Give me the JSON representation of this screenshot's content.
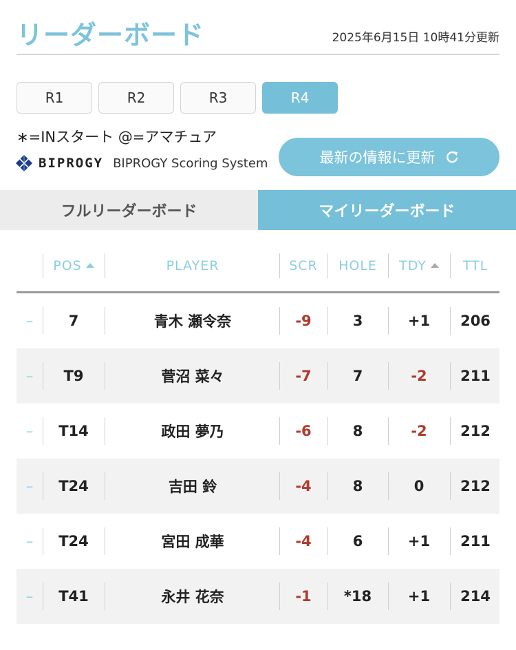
{
  "header": {
    "title": "リーダーボード",
    "updated": "2025年6月15日 10時41分更新"
  },
  "rounds": [
    "R1",
    "R2",
    "R3",
    "R4"
  ],
  "active_round": "R4",
  "legend": "∗=INスタート @=アマチュア",
  "sponsor": {
    "brand": "BIPROGY",
    "system": "BIPROGY Scoring System"
  },
  "refresh_label": "最新の情報に更新",
  "board_tabs": {
    "full": "フルリーダーボード",
    "my": "マイリーダーボード"
  },
  "columns": {
    "pos": "POS",
    "player": "PLAYER",
    "scr": "SCR",
    "hole": "HOLE",
    "tdy": "TDY",
    "ttl": "TTL"
  },
  "rows": [
    {
      "change": "–",
      "pos": "7",
      "player": "青木 瀬令奈",
      "scr": "-9",
      "hole": "3",
      "tdy": "+1",
      "ttl": "206"
    },
    {
      "change": "–",
      "pos": "T9",
      "player": "菅沼 菜々",
      "scr": "-7",
      "hole": "7",
      "tdy": "-2",
      "ttl": "211"
    },
    {
      "change": "–",
      "pos": "T14",
      "player": "政田 夢乃",
      "scr": "-6",
      "hole": "8",
      "tdy": "-2",
      "ttl": "212"
    },
    {
      "change": "–",
      "pos": "T24",
      "player": "吉田 鈴",
      "scr": "-4",
      "hole": "8",
      "tdy": "0",
      "ttl": "212"
    },
    {
      "change": "–",
      "pos": "T24",
      "player": "宮田 成華",
      "scr": "-4",
      "hole": "6",
      "tdy": "+1",
      "ttl": "211"
    },
    {
      "change": "–",
      "pos": "T41",
      "player": "永井 花奈",
      "scr": "-1",
      "hole": "*18",
      "tdy": "+1",
      "ttl": "214"
    }
  ],
  "colors": {
    "accent": "#75bfd8",
    "title": "#7cc3dc",
    "negative": "#b03a2e"
  }
}
